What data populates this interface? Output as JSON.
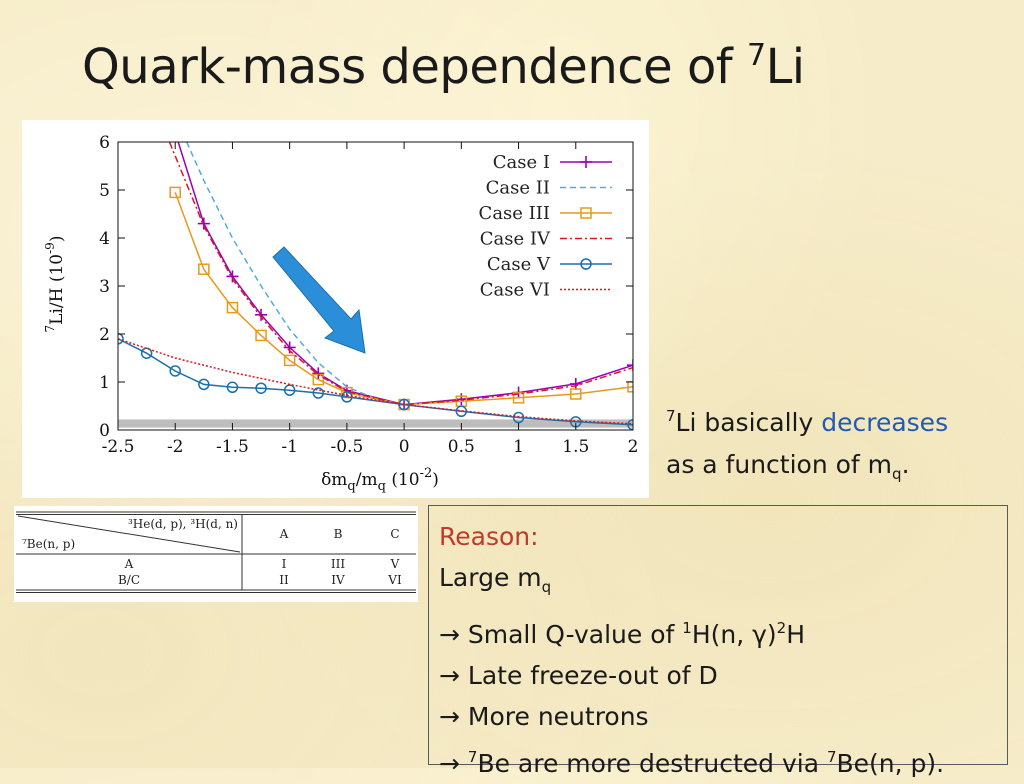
{
  "title": {
    "main": "Quark-mass dependence of ",
    "sup": "7",
    "tail": "Li"
  },
  "chart_data": {
    "type": "line",
    "xlabel": {
      "pre": "δm",
      "sub1": "q",
      "mid": "/m",
      "sub2": "q",
      "post": " (10",
      "sup": "-2",
      "end": ")"
    },
    "ylabel": {
      "sup": "7",
      "main": "Li/H (10",
      "sup2": "-9",
      "end": ")"
    },
    "xlim": [
      -2.5,
      2
    ],
    "ylim": [
      0,
      6
    ],
    "xticks": [
      "-2.5",
      "-2",
      "-1.5",
      "-1",
      "-0.5",
      "0",
      "0.5",
      "1",
      "1.5",
      "2"
    ],
    "yticks": [
      "0",
      "1",
      "2",
      "3",
      "4",
      "5",
      "6"
    ],
    "grey_band": [
      0.05,
      0.22
    ],
    "legend_position": "top-right",
    "series": [
      {
        "name": "Case I",
        "color": "#9b00b9",
        "style": "solid",
        "marker": "plus",
        "x": [
          -2,
          -1.75,
          -1.5,
          -1.25,
          -1,
          -0.75,
          -0.5,
          0,
          0.5,
          1,
          1.5,
          2
        ],
        "y": [
          6.2,
          4.3,
          3.2,
          2.4,
          1.72,
          1.18,
          0.82,
          0.53,
          0.64,
          0.78,
          0.96,
          1.35
        ]
      },
      {
        "name": "Case II",
        "color": "#56a9e2",
        "style": "dashed",
        "marker": "none",
        "x": [
          -1.9,
          -1.75,
          -1.5,
          -1.25,
          -1,
          -0.75,
          -0.5,
          -0.25,
          0
        ],
        "y": [
          6.0,
          5.2,
          4.0,
          3.0,
          2.1,
          1.4,
          0.9,
          0.65,
          0.53
        ]
      },
      {
        "name": "Case III",
        "color": "#e59a1a",
        "style": "solid",
        "marker": "square",
        "x": [
          -2,
          -1.75,
          -1.5,
          -1.25,
          -1,
          -0.75,
          -0.5,
          0,
          0.5,
          1,
          1.5,
          2
        ],
        "y": [
          4.95,
          3.35,
          2.55,
          1.97,
          1.45,
          1.05,
          0.78,
          0.53,
          0.6,
          0.67,
          0.75,
          0.9
        ]
      },
      {
        "name": "Case IV",
        "color": "#e0141e",
        "style": "dashdot",
        "marker": "none",
        "x": [
          -2.05,
          -1.75,
          -1.5,
          -1.25,
          -1,
          -0.75,
          -0.5,
          0,
          0.5,
          1,
          1.5,
          2
        ],
        "y": [
          6.0,
          4.25,
          3.15,
          2.35,
          1.65,
          1.15,
          0.8,
          0.53,
          0.62,
          0.75,
          0.92,
          1.3
        ]
      },
      {
        "name": "Case V",
        "color": "#1a6fae",
        "style": "solid",
        "marker": "circle",
        "x": [
          -2.5,
          -2.25,
          -2,
          -1.75,
          -1.5,
          -1.25,
          -1,
          -0.75,
          -0.5,
          0,
          0.5,
          1,
          1.5,
          2
        ],
        "y": [
          1.9,
          1.6,
          1.23,
          0.95,
          0.89,
          0.87,
          0.83,
          0.77,
          0.69,
          0.53,
          0.39,
          0.26,
          0.17,
          0.11
        ]
      },
      {
        "name": "Case VI",
        "color": "#e0141e",
        "style": "dotted",
        "marker": "none",
        "x": [
          -2.5,
          -2,
          -1.5,
          -1,
          -0.5,
          0,
          0.5,
          1,
          1.5,
          2
        ],
        "y": [
          1.9,
          1.5,
          1.2,
          0.95,
          0.72,
          0.53,
          0.4,
          0.28,
          0.19,
          0.13
        ]
      }
    ]
  },
  "note": {
    "sup": "7",
    "part1": "Li basically ",
    "highlight": "decreases",
    "line2": "as a function of m",
    "sub": "q",
    "end": "."
  },
  "case_table": {
    "header_top": "³He(d, p), ³H(d, n)",
    "header_bottom": "⁷Be(n, p)",
    "columns": [
      "A",
      "B",
      "C"
    ],
    "rows": [
      {
        "label": "A",
        "cells": [
          "I",
          "III",
          "V"
        ]
      },
      {
        "label": "B/C",
        "cells": [
          "II",
          "IV",
          "VI"
        ]
      }
    ]
  },
  "reason": {
    "title": "Reason:",
    "line1": "Large m",
    "line1_sub": "q",
    "line2_pre": "→ Small Q-value of ",
    "line2_sup1": "1",
    "line2_mid": "H(n, γ)",
    "line2_sup2": "2",
    "line2_end": "H",
    "line3": "→ Late freeze-out of D",
    "line4": "→ More neutrons",
    "line5_pre": "→ ",
    "line5_sup1": "7",
    "line5_mid": "Be are more destructed via ",
    "line5_sup2": "7",
    "line5_end": "Be(n, p)."
  },
  "arrow_color": "#2a8fd8"
}
